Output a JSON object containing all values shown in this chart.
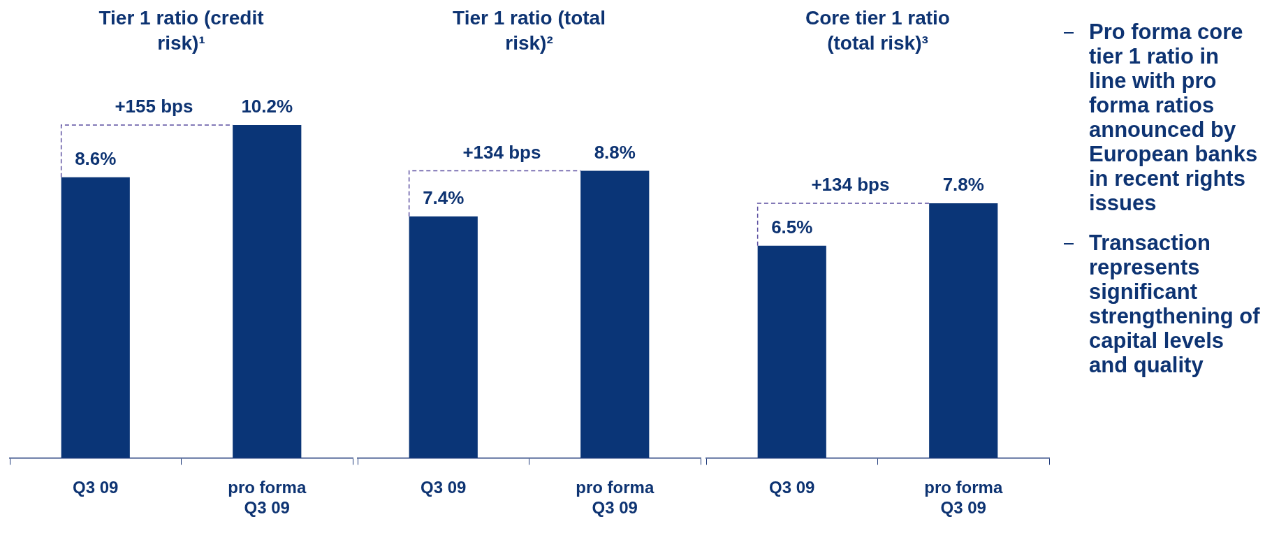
{
  "chart_data": [
    {
      "type": "bar",
      "title": "Tier 1 ratio (credit risk)¹",
      "categories": [
        "Q3 09",
        "pro forma Q3 09"
      ],
      "values": [
        8.6,
        10.2
      ],
      "value_labels": [
        "8.6%",
        "10.2%"
      ],
      "color": "#0a3577",
      "annotations": [
        "+155 bps"
      ]
    },
    {
      "type": "bar",
      "title": "Tier 1 ratio (total risk)²",
      "categories": [
        "Q3 09",
        "pro forma Q3 09"
      ],
      "values": [
        7.4,
        8.8
      ],
      "value_labels": [
        "7.4%",
        "8.8%"
      ],
      "color": "#0a3577",
      "annotations": [
        "+134 bps"
      ]
    },
    {
      "type": "bar",
      "title": "Core tier 1 ratio (total risk)³",
      "categories": [
        "Q3 09",
        "pro forma Q3 09"
      ],
      "values": [
        6.5,
        7.8
      ],
      "value_labels": [
        "6.5%",
        "7.8%"
      ],
      "color": "#0a3577",
      "annotations": [
        "+134 bps"
      ]
    },
    {
      "type": "other",
      "annotations": [
        "Pro forma core tier 1 ratio in line with pro forma ratios announced by European banks in recent rights issues",
        "Transaction represents significant strengthening of capital levels and quality"
      ]
    }
  ]
}
